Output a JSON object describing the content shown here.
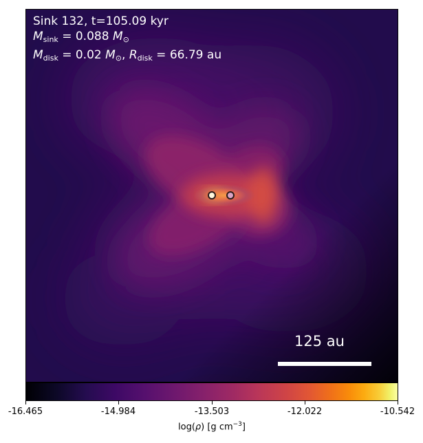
{
  "info": {
    "line1": "Sink 132, t=105.09 kyr",
    "msink_symbol": "M",
    "msink_sub": "sink",
    "msink_value": " = 0.088 ",
    "msink_unit": "M",
    "msink_unit_sub": "⊙",
    "mdisk_symbol": "M",
    "mdisk_sub": "disk",
    "mdisk_value": " = 0.02 ",
    "mdisk_unit": "M",
    "mdisk_unit_sub": "⊙",
    "sep": ", ",
    "rdisk_symbol": "R",
    "rdisk_sub": "disk",
    "rdisk_value": " = 66.79 au"
  },
  "scalebar": {
    "label": "125 au"
  },
  "sinks": [
    {
      "name": "sink-a",
      "color": "#fff7dc"
    },
    {
      "name": "sink-b",
      "color": "#d9a3c4"
    }
  ],
  "colorbar": {
    "colormap": "inferno",
    "range": [
      -16.465,
      -10.542
    ],
    "ticks": [
      "-16.465",
      "-14.984",
      "-13.503",
      "-12.022",
      "-10.542"
    ],
    "label_prefix": "log(",
    "label_rho": "ρ",
    "label_mid": ") [g cm",
    "label_sup": "−3",
    "label_suffix": "]"
  }
}
